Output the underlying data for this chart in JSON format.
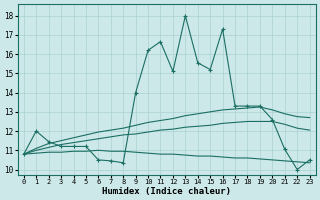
{
  "xlabel": "Humidex (Indice chaleur)",
  "xlim": [
    -0.5,
    23.5
  ],
  "ylim": [
    9.7,
    18.6
  ],
  "yticks": [
    10,
    11,
    12,
    13,
    14,
    15,
    16,
    17,
    18
  ],
  "xticks": [
    0,
    1,
    2,
    3,
    4,
    5,
    6,
    7,
    8,
    9,
    10,
    11,
    12,
    13,
    14,
    15,
    16,
    17,
    18,
    19,
    20,
    21,
    22,
    23
  ],
  "bg_color": "#cce8e8",
  "line_color": "#1a6e64",
  "grid_color": "#aad0d0",
  "main_line": [
    10.8,
    12.0,
    11.45,
    11.2,
    11.2,
    11.2,
    10.5,
    10.45,
    10.35,
    14.0,
    16.2,
    16.65,
    15.1,
    18.0,
    15.55,
    15.2,
    17.3,
    13.3,
    13.3,
    13.3,
    12.6,
    11.05,
    10.0,
    10.5
  ],
  "trend_upper_x": [
    0,
    1,
    2,
    3,
    4,
    5,
    6,
    7,
    8,
    9,
    10,
    11,
    12,
    13,
    14,
    15,
    16,
    17,
    18,
    19,
    20,
    21,
    22,
    23
  ],
  "trend_upper_y": [
    10.8,
    11.1,
    11.35,
    11.5,
    11.65,
    11.8,
    11.95,
    12.05,
    12.15,
    12.3,
    12.45,
    12.55,
    12.65,
    12.8,
    12.9,
    13.0,
    13.1,
    13.15,
    13.2,
    13.25,
    13.1,
    12.9,
    12.75,
    12.7
  ],
  "trend_mid_x": [
    0,
    1,
    2,
    3,
    4,
    5,
    6,
    7,
    8,
    9,
    10,
    11,
    12,
    13,
    14,
    15,
    16,
    17,
    18,
    19,
    20,
    21,
    22,
    23
  ],
  "trend_mid_y": [
    10.8,
    11.0,
    11.15,
    11.3,
    11.4,
    11.5,
    11.6,
    11.7,
    11.8,
    11.85,
    11.95,
    12.05,
    12.1,
    12.2,
    12.25,
    12.3,
    12.4,
    12.45,
    12.5,
    12.5,
    12.5,
    12.35,
    12.15,
    12.05
  ],
  "trend_lower_x": [
    0,
    1,
    2,
    3,
    4,
    5,
    6,
    7,
    8,
    9,
    10,
    11,
    12,
    13,
    14,
    15,
    16,
    17,
    18,
    19,
    20,
    21,
    22,
    23
  ],
  "trend_lower_y": [
    10.8,
    10.85,
    10.9,
    10.9,
    10.95,
    10.95,
    11.0,
    10.95,
    10.95,
    10.9,
    10.85,
    10.8,
    10.8,
    10.75,
    10.7,
    10.7,
    10.65,
    10.6,
    10.6,
    10.55,
    10.5,
    10.45,
    10.4,
    10.35
  ]
}
